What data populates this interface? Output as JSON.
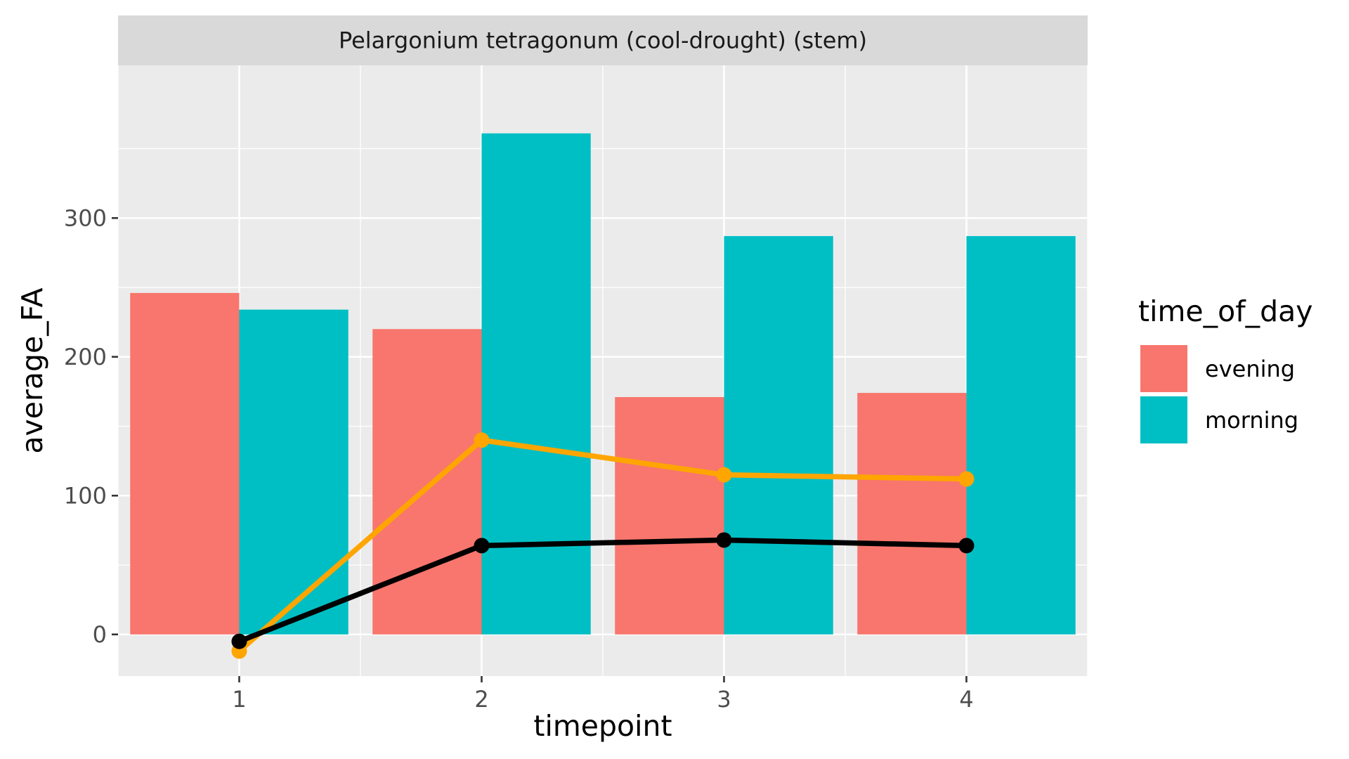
{
  "chart_data": {
    "type": "bar",
    "facet_title": "Pelargonium tetragonum (cool-drought) (stem)",
    "xlabel": "timepoint",
    "ylabel": "average_FA",
    "categories": [
      "1",
      "2",
      "3",
      "4"
    ],
    "yticks": [
      0,
      100,
      200,
      300
    ],
    "ylim": [
      -30,
      410
    ],
    "xlim": [
      0.5,
      4.5
    ],
    "grid": true,
    "legend_placement": "right",
    "legend": {
      "title": "time_of_day",
      "items": [
        {
          "label": "evening",
          "color": "#F8766D"
        },
        {
          "label": "morning",
          "color": "#00BFC4"
        }
      ]
    },
    "series": [
      {
        "name": "evening",
        "kind": "bar",
        "color": "#F8766D",
        "values": [
          246,
          220,
          171,
          174
        ]
      },
      {
        "name": "morning",
        "kind": "bar",
        "color": "#00BFC4",
        "values": [
          234,
          361,
          287,
          287
        ]
      }
    ],
    "lines": [
      {
        "color": "#FFA500",
        "values": [
          -12,
          140,
          115,
          112
        ]
      },
      {
        "color": "#000000",
        "values": [
          -5,
          64,
          68,
          64
        ]
      }
    ],
    "colors": {
      "panel_background": "#EBEBEB",
      "strip_background": "#D9D9D9",
      "grid": "#FFFFFF"
    }
  }
}
